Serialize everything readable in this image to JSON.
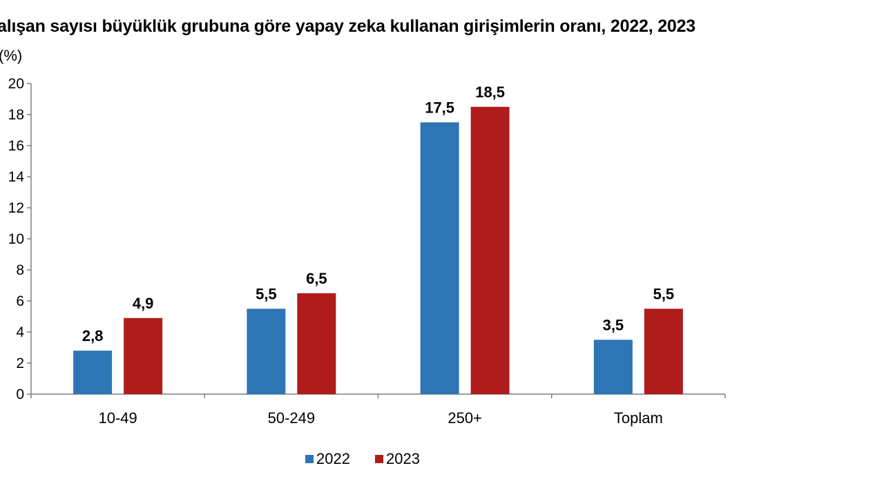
{
  "chart_data": {
    "type": "bar",
    "title": "alışan sayısı büyüklük grubuna göre yapay zeka kullanan girişimlerin oranı, 2022, 2023",
    "ylabel": "(%)",
    "xlabel": "",
    "categories": [
      "10-49",
      "50-249",
      "250+",
      "Toplam"
    ],
    "series": [
      {
        "name": "2022",
        "color": "#2E75B6",
        "values": [
          2.8,
          5.5,
          17.5,
          3.5
        ],
        "labels": [
          "2,8",
          "5,5",
          "17,5",
          "3,5"
        ]
      },
      {
        "name": "2023",
        "color": "#B01C1C",
        "values": [
          4.9,
          6.5,
          18.5,
          5.5
        ],
        "labels": [
          "4,9",
          "6,5",
          "18,5",
          "5,5"
        ]
      }
    ],
    "ylim": [
      0,
      20
    ],
    "yticks": [
      0,
      2,
      4,
      6,
      8,
      10,
      12,
      14,
      16,
      18,
      20
    ],
    "ytick_labels": [
      "0",
      "2",
      "4",
      "6",
      "8",
      "10",
      "12",
      "14",
      "16",
      "18",
      "20"
    ],
    "grid": false,
    "legend_position": "bottom"
  }
}
